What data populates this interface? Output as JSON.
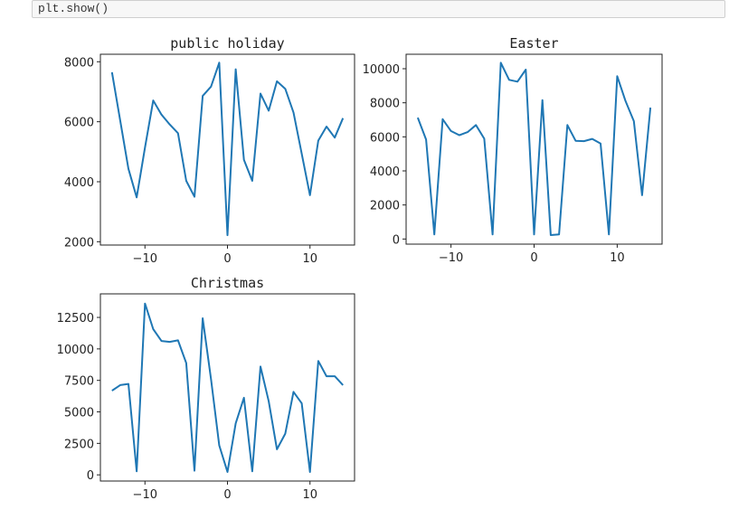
{
  "notebook": {
    "code_line": "plt.show()"
  },
  "chart_data": [
    {
      "type": "line",
      "title": "public holiday",
      "x": [
        -14,
        -13,
        -12,
        -11,
        -10,
        -9,
        -8,
        -7,
        -6,
        -5,
        -4,
        -3,
        -2,
        -1,
        0,
        1,
        2,
        3,
        4,
        5,
        6,
        7,
        8,
        9,
        10,
        11,
        12,
        13,
        14
      ],
      "values": [
        7650,
        6040,
        4430,
        3480,
        5140,
        6710,
        6240,
        5910,
        5620,
        4030,
        3500,
        6860,
        7170,
        7970,
        2220,
        7750,
        4730,
        4030,
        6940,
        6370,
        7350,
        7100,
        6310,
        4930,
        3550,
        5370,
        5840,
        5470,
        6120
      ],
      "xlim": [
        -15.4,
        15.4
      ],
      "ylim": [
        1890,
        8250
      ],
      "xticks": [
        "-10",
        "0",
        "10"
      ],
      "xtick_values": [
        -10,
        0,
        10
      ],
      "yticks": [
        "2000",
        "4000",
        "6000",
        "8000"
      ],
      "ytick_values": [
        2000,
        4000,
        6000,
        8000
      ],
      "color": "#1f77b4",
      "grid": false
    },
    {
      "type": "line",
      "title": "Easter",
      "x": [
        -14,
        -13,
        -12,
        -11,
        -10,
        -9,
        -8,
        -7,
        -6,
        -5,
        -4,
        -3,
        -2,
        -1,
        0,
        1,
        2,
        3,
        4,
        5,
        6,
        7,
        8,
        9,
        10,
        11,
        12,
        13,
        14
      ],
      "values": [
        7130,
        5840,
        270,
        7040,
        6340,
        6100,
        6280,
        6690,
        5890,
        270,
        10350,
        9350,
        9240,
        9950,
        270,
        8160,
        230,
        270,
        6690,
        5770,
        5750,
        5880,
        5610,
        270,
        9560,
        8100,
        6920,
        2570,
        7720
      ],
      "xlim": [
        -15.4,
        15.4
      ],
      "ylim": [
        -300,
        10850
      ],
      "xticks": [
        "-10",
        "0",
        "10"
      ],
      "xtick_values": [
        -10,
        0,
        10
      ],
      "yticks": [
        "0",
        "2000",
        "4000",
        "6000",
        "8000",
        "10000"
      ],
      "ytick_values": [
        0,
        2000,
        4000,
        6000,
        8000,
        10000
      ],
      "color": "#1f77b4",
      "grid": false
    },
    {
      "type": "line",
      "title": "Christmas",
      "x": [
        -14,
        -13,
        -12,
        -11,
        -10,
        -9,
        -8,
        -7,
        -6,
        -5,
        -4,
        -3,
        -2,
        -1,
        0,
        1,
        2,
        3,
        4,
        5,
        6,
        7,
        8,
        9,
        10,
        11,
        12,
        13,
        14
      ],
      "values": [
        6680,
        7130,
        7220,
        280,
        13600,
        11570,
        10630,
        10560,
        10680,
        8880,
        330,
        12430,
        7600,
        2340,
        230,
        4090,
        6120,
        280,
        8600,
        5840,
        2030,
        3270,
        6590,
        5680,
        230,
        9040,
        7830,
        7830,
        7130
      ],
      "xlim": [
        -15.4,
        15.4
      ],
      "ylim": [
        -490,
        14370
      ],
      "xticks": [
        "-10",
        "0",
        "10"
      ],
      "xtick_values": [
        -10,
        0,
        10
      ],
      "yticks": [
        "0",
        "2500",
        "5000",
        "7500",
        "10000",
        "12500"
      ],
      "ytick_values": [
        0,
        2500,
        5000,
        7500,
        10000,
        12500
      ],
      "color": "#1f77b4",
      "grid": false
    }
  ]
}
